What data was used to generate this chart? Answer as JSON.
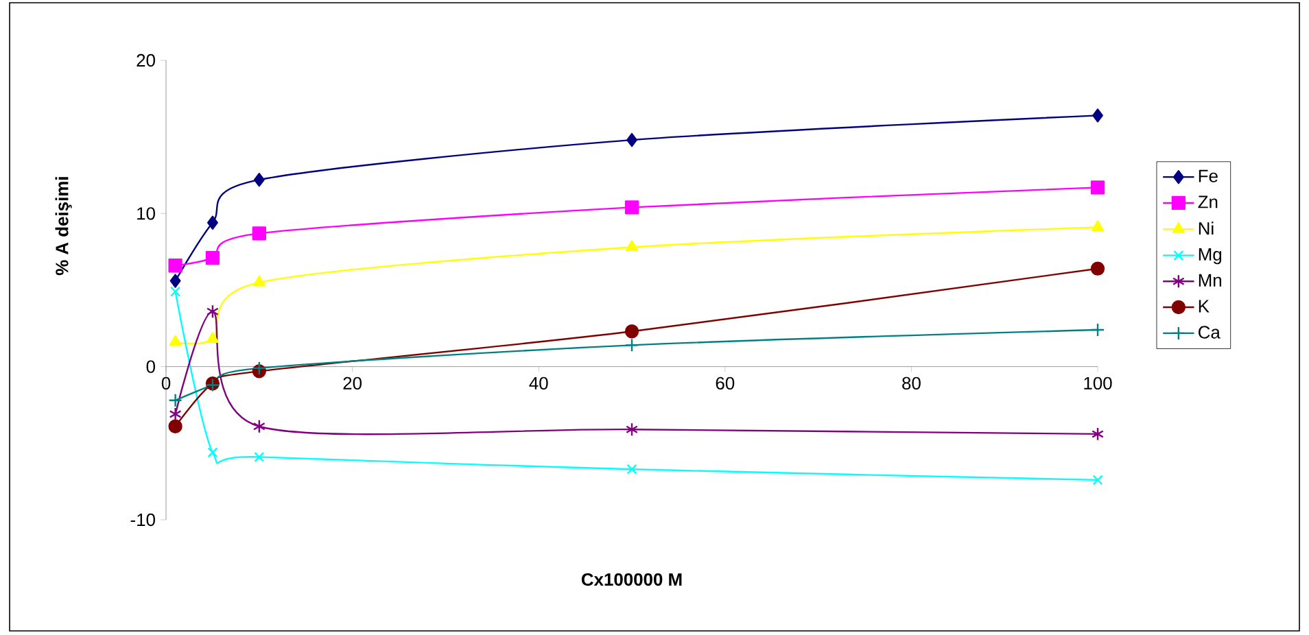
{
  "chart_data": {
    "type": "line",
    "xlabel": "Cx100000 M",
    "ylabel": "% A deişimi",
    "x": [
      1,
      5,
      10,
      50,
      100
    ],
    "xlim": [
      0,
      100
    ],
    "xticks": [
      0,
      20,
      40,
      60,
      80,
      100
    ],
    "ylim": [
      -10,
      20
    ],
    "yticks": [
      -10,
      0,
      10,
      20
    ],
    "legend": "right",
    "series": [
      {
        "name": "Fe",
        "color": "#000080",
        "marker": "diamond",
        "values": [
          5.6,
          9.4,
          12.2,
          14.8,
          16.4
        ]
      },
      {
        "name": "Zn",
        "color": "#ff00ff",
        "marker": "square",
        "values": [
          6.6,
          7.1,
          8.7,
          10.4,
          11.7
        ]
      },
      {
        "name": "Ni",
        "color": "#ffff00",
        "marker": "triangle",
        "values": [
          1.6,
          1.8,
          5.5,
          7.8,
          9.1
        ]
      },
      {
        "name": "Mg",
        "color": "#00ffff",
        "marker": "cross",
        "values": [
          4.9,
          -5.6,
          -5.9,
          -6.7,
          -7.4
        ]
      },
      {
        "name": "Mn",
        "color": "#800080",
        "marker": "cross",
        "values": [
          -3.1,
          3.6,
          -3.9,
          -4.1,
          -4.4
        ]
      },
      {
        "name": "K",
        "color": "#800000",
        "marker": "circle",
        "values": [
          -3.9,
          -1.1,
          -0.3,
          2.3,
          6.4
        ]
      },
      {
        "name": "Ca",
        "color": "#008080",
        "marker": "cross",
        "values": [
          -2.2,
          -1.2,
          -0.1,
          1.4,
          2.4
        ]
      }
    ]
  }
}
